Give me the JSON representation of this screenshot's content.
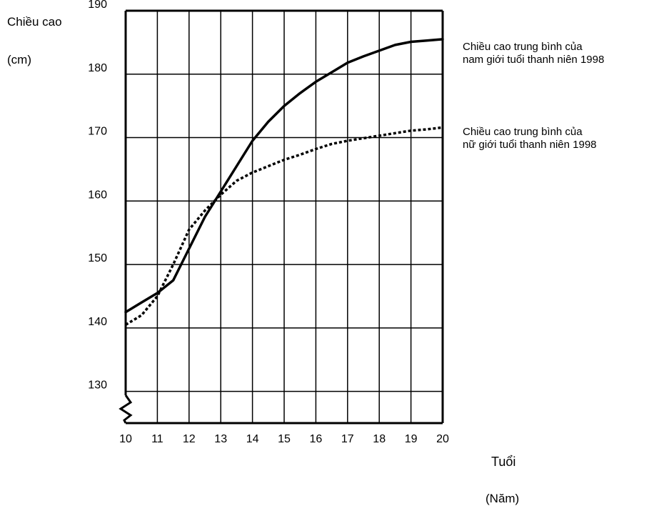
{
  "chart_data": {
    "type": "line",
    "title": "",
    "ylabel_line1": "Chiều cao",
    "ylabel_line2": "(cm)",
    "xlabel_line1": "Tuổi",
    "xlabel_line2": "(Năm)",
    "xlim": [
      10,
      20
    ],
    "ylim": [
      125,
      190
    ],
    "xticks": [
      "10",
      "11",
      "12",
      "13",
      "14",
      "15",
      "16",
      "17",
      "18",
      "19",
      "20"
    ],
    "yticks": [
      "130",
      "140",
      "150",
      "160",
      "170",
      "180",
      "190"
    ],
    "grid": true,
    "axis_break": true,
    "legend_placement": "right",
    "series": [
      {
        "name_line1": "Chiều cao trung bình của",
        "name_line2": "nam giới tuổi thanh niên 1998",
        "style": "solid",
        "color": "#000000",
        "x": [
          10,
          10.5,
          11,
          11.5,
          12,
          12.5,
          13,
          13.5,
          14,
          14.5,
          15,
          15.5,
          16,
          16.5,
          17,
          17.5,
          18,
          18.5,
          19,
          19.5,
          20
        ],
        "y": [
          142.5,
          144,
          145.5,
          147.5,
          152.5,
          157.5,
          161.5,
          165.5,
          169.5,
          172.5,
          175,
          177,
          178.8,
          180.3,
          181.8,
          182.8,
          183.7,
          184.6,
          185.1,
          185.3,
          185.5
        ]
      },
      {
        "name_line1": "Chiều cao trung bình của",
        "name_line2": "nữ giới tuổi thanh niên 1998",
        "style": "dotted",
        "color": "#000000",
        "x": [
          10,
          10.5,
          11,
          11.5,
          12,
          12.5,
          13,
          13.5,
          14,
          14.5,
          15,
          15.5,
          16,
          16.5,
          17,
          17.5,
          18,
          18.5,
          19,
          19.5,
          20
        ],
        "y": [
          140.5,
          142,
          145,
          150,
          155.5,
          158.5,
          161,
          163.2,
          164.5,
          165.5,
          166.5,
          167.3,
          168.2,
          169,
          169.5,
          169.9,
          170.3,
          170.7,
          171.1,
          171.3,
          171.6
        ]
      }
    ]
  }
}
